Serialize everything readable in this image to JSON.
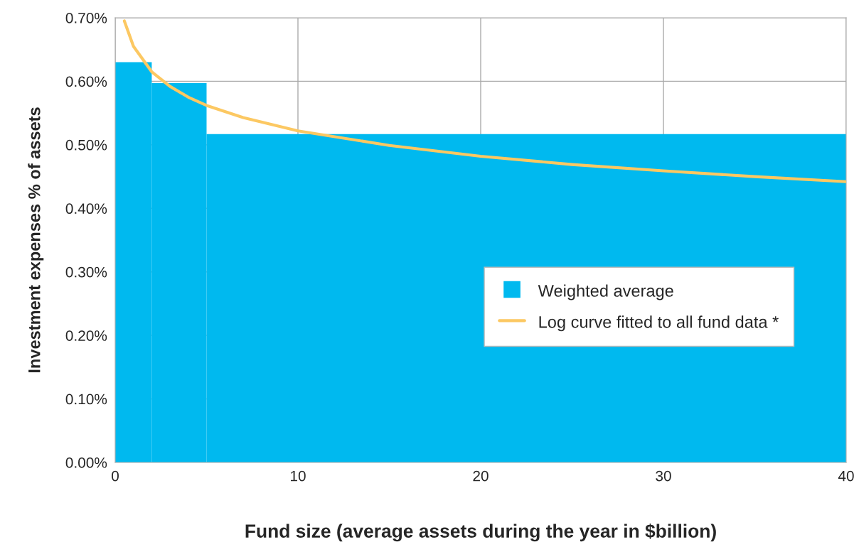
{
  "chart_data": {
    "type": "histogram",
    "xlabel": "Fund size (average assets during the year in $billion)",
    "ylabel": "Investment expenses % of assets",
    "series": [
      {
        "name": "Weighted average",
        "color": "#00b9ef",
        "bins": [
          0,
          2,
          5,
          40
        ],
        "values": [
          0.63,
          0.597,
          0.517
        ]
      },
      {
        "name": "Log curve fitted to all fund data *",
        "type": "line",
        "color": "#fcc862",
        "x": [
          0.5,
          1,
          2,
          3,
          4,
          5,
          7,
          10,
          15,
          20,
          25,
          30,
          35,
          40
        ],
        "values": [
          0.695,
          0.655,
          0.615,
          0.592,
          0.575,
          0.562,
          0.543,
          0.522,
          0.499,
          0.482,
          0.469,
          0.459,
          0.45,
          0.442
        ]
      }
    ],
    "xlim": [
      0,
      40
    ],
    "xticks": [
      0,
      10,
      20,
      30,
      40
    ],
    "ylim": [
      0,
      0.7
    ],
    "yticks": [
      {
        "value": 0,
        "label": "0.00%"
      },
      {
        "value": 0.1,
        "label": "0.10%"
      },
      {
        "value": 0.2,
        "label": "0.20%"
      },
      {
        "value": 0.3,
        "label": "0.30%"
      },
      {
        "value": 0.4,
        "label": "0.40%"
      },
      {
        "value": 0.5,
        "label": "0.50%"
      },
      {
        "value": 0.6,
        "label": "0.60%"
      },
      {
        "value": 0.7,
        "label": "0.70%"
      }
    ],
    "grid": true,
    "legend": "right",
    "line_style": "solid"
  }
}
